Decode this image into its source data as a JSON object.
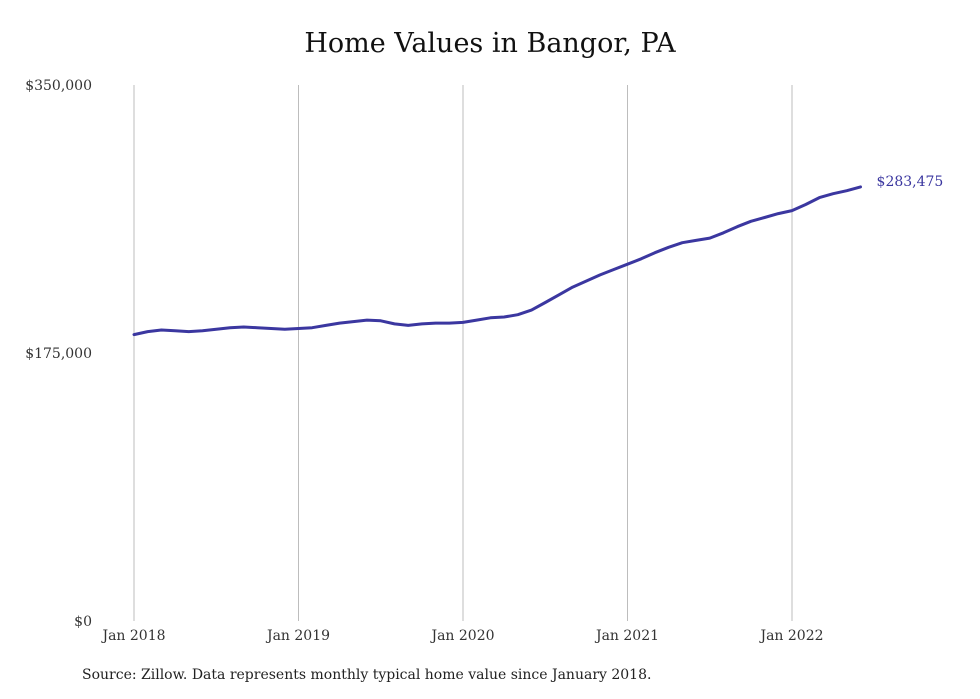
{
  "chart_data": {
    "type": "line",
    "title": "Home Values in Bangor, PA",
    "xlabel": "",
    "ylabel": "",
    "ylim": [
      0,
      350000
    ],
    "yticks": [
      {
        "value": 0,
        "label": "$0"
      },
      {
        "value": 175000,
        "label": "$175,000"
      },
      {
        "value": 350000,
        "label": "$350,000"
      }
    ],
    "xticks": [
      {
        "index": 0,
        "label": "Jan 2018"
      },
      {
        "index": 12,
        "label": "Jan 2019"
      },
      {
        "index": 24,
        "label": "Jan 2020"
      },
      {
        "index": 36,
        "label": "Jan 2021"
      },
      {
        "index": 48,
        "label": "Jan 2022"
      }
    ],
    "grid": {
      "vertical": true,
      "horizontal": false
    },
    "series_color": "#3b37a0",
    "end_label": "$283,475",
    "series": [
      {
        "values": [
          187000,
          189000,
          190000,
          189500,
          189000,
          189500,
          190500,
          191500,
          192000,
          191500,
          191000,
          190500,
          191000,
          191500,
          193000,
          194500,
          195500,
          196500,
          196000,
          194000,
          193000,
          194000,
          194500,
          194500,
          195000,
          196500,
          198000,
          198500,
          200000,
          203000,
          208000,
          213000,
          218000,
          222000,
          226000,
          229500,
          233000,
          236500,
          240500,
          244000,
          247000,
          248500,
          250000,
          253500,
          257500,
          261000,
          263500,
          266000,
          268000,
          272000,
          276500,
          279000,
          281000,
          283475
        ]
      }
    ]
  },
  "footer": {
    "source": "Source: Zillow. Data represents monthly typical home value since January 2018."
  }
}
